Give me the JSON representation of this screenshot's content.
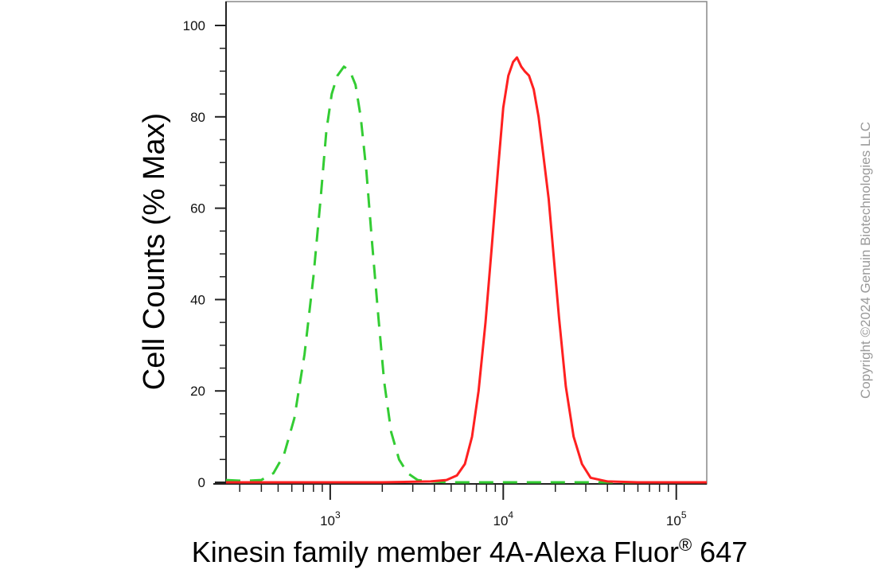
{
  "chart_data": {
    "type": "line",
    "title": "",
    "xlabel": "Kinesin family member 4A-Alexa Fluor",
    "xlabel_superscript": "®",
    "xlabel_suffix": " 647",
    "ylabel": "Cell Counts (% Max)",
    "x_scale": "log",
    "xlim": [
      250,
      150000
    ],
    "ylim": [
      0,
      100
    ],
    "yticks": [
      0,
      20,
      40,
      60,
      80,
      100
    ],
    "ytick_labels": [
      "0",
      "20",
      "40",
      "60",
      "80",
      "100"
    ],
    "xticks": [
      1000,
      10000,
      100000
    ],
    "xtick_labels": [
      {
        "base": "10",
        "exp": "3"
      },
      {
        "base": "10",
        "exp": "4"
      },
      {
        "base": "10",
        "exp": "5"
      }
    ],
    "grid": false,
    "series": [
      {
        "color": "#33cc33",
        "style": "dashed",
        "points": [
          [
            250,
            0.5
          ],
          [
            320,
            0.3
          ],
          [
            400,
            0.5
          ],
          [
            470,
            2
          ],
          [
            540,
            6
          ],
          [
            620,
            14
          ],
          [
            710,
            28
          ],
          [
            800,
            45
          ],
          [
            880,
            62
          ],
          [
            950,
            77
          ],
          [
            1020,
            85
          ],
          [
            1100,
            89
          ],
          [
            1200,
            91
          ],
          [
            1300,
            90
          ],
          [
            1400,
            87
          ],
          [
            1500,
            80
          ],
          [
            1620,
            68
          ],
          [
            1750,
            52
          ],
          [
            1900,
            36
          ],
          [
            2050,
            22
          ],
          [
            2250,
            11
          ],
          [
            2500,
            5
          ],
          [
            2800,
            2
          ],
          [
            3200,
            0.5
          ],
          [
            3800,
            0.2
          ],
          [
            5000,
            0
          ],
          [
            10000,
            0
          ],
          [
            30000,
            0
          ],
          [
            150000,
            0
          ]
        ]
      },
      {
        "color": "#ff2020",
        "style": "solid",
        "points": [
          [
            250,
            0
          ],
          [
            2000,
            0
          ],
          [
            3800,
            0.2
          ],
          [
            4700,
            0.5
          ],
          [
            5400,
            1.5
          ],
          [
            6000,
            4
          ],
          [
            6600,
            10
          ],
          [
            7200,
            20
          ],
          [
            7900,
            35
          ],
          [
            8600,
            52
          ],
          [
            9300,
            68
          ],
          [
            10000,
            82
          ],
          [
            10700,
            89
          ],
          [
            11400,
            92
          ],
          [
            12000,
            93
          ],
          [
            12700,
            91
          ],
          [
            13300,
            90
          ],
          [
            14100,
            89
          ],
          [
            15000,
            86
          ],
          [
            16000,
            80
          ],
          [
            17000,
            72
          ],
          [
            18300,
            62
          ],
          [
            19500,
            50
          ],
          [
            21000,
            36
          ],
          [
            23000,
            21
          ],
          [
            25500,
            10
          ],
          [
            28500,
            4
          ],
          [
            32000,
            1
          ],
          [
            40000,
            0.2
          ],
          [
            60000,
            0
          ],
          [
            150000,
            0
          ]
        ]
      }
    ]
  },
  "watermark": "Copyright ©2024 Genuin Biotechnologies LLC"
}
